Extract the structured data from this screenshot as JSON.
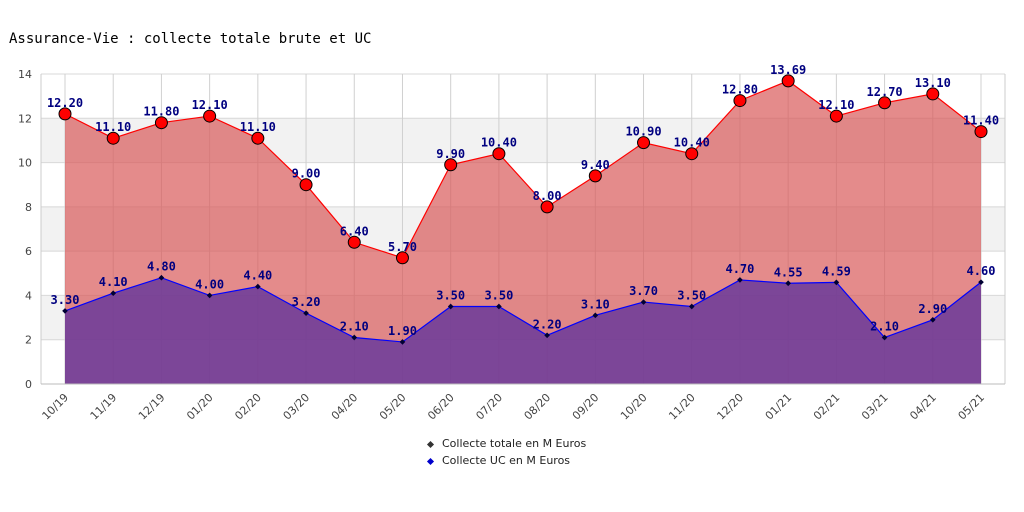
{
  "chart_data": {
    "type": "area",
    "title": "Assurance-Vie : collecte totale brute et UC",
    "categories": [
      "10/19",
      "11/19",
      "12/19",
      "01/20",
      "02/20",
      "03/20",
      "04/20",
      "05/20",
      "06/20",
      "07/20",
      "08/20",
      "09/20",
      "10/20",
      "11/20",
      "12/20",
      "01/21",
      "02/21",
      "03/21",
      "04/21",
      "05/21"
    ],
    "series": [
      {
        "name": "Collecte totale en M Euros",
        "color": "#ff0000",
        "fill": "#d85a5a",
        "values": [
          12.2,
          11.1,
          11.8,
          12.1,
          11.1,
          9.0,
          6.4,
          5.7,
          9.9,
          10.4,
          8.0,
          9.4,
          10.9,
          10.4,
          12.8,
          13.69,
          12.1,
          12.7,
          13.1,
          11.4
        ]
      },
      {
        "name": "Collecte UC en M Euros",
        "color": "#0000ff",
        "fill": "#6a3a9a",
        "values": [
          3.3,
          4.1,
          4.8,
          4.0,
          4.4,
          3.2,
          2.1,
          1.9,
          3.5,
          3.5,
          2.2,
          3.1,
          3.7,
          3.5,
          4.7,
          4.55,
          4.59,
          2.1,
          2.9,
          4.6
        ]
      }
    ],
    "ylim": [
      0,
      14
    ],
    "yticks": [
      0,
      2,
      4,
      6,
      8,
      10,
      12,
      14
    ],
    "legend": "bottom-center",
    "grid": true
  }
}
